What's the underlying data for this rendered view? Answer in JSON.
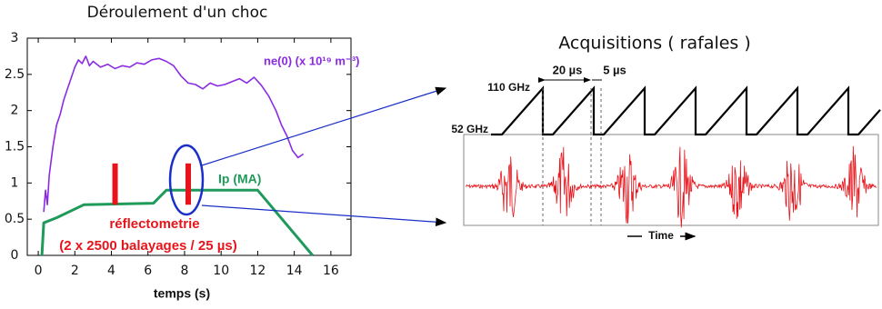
{
  "chart_data": {
    "type": "line",
    "title": "Déroulement d'un choc",
    "xlabel": "temps (s)",
    "xlim": [
      -0.6,
      17.1
    ],
    "ylim": [
      0,
      3
    ],
    "xticks": [
      0,
      2,
      4,
      6,
      8,
      10,
      12,
      14,
      16
    ],
    "yticks": [
      0,
      0.5,
      1,
      1.5,
      2,
      2.5,
      3
    ],
    "grid": false,
    "series": [
      {
        "name": "ne(0) (x 10¹⁹ m⁻³)",
        "color": "#8a2be2",
        "x": [
          0.3,
          0.4,
          0.5,
          0.6,
          0.8,
          1.0,
          1.2,
          1.4,
          1.6,
          1.8,
          2.0,
          2.2,
          2.4,
          2.6,
          2.8,
          3.0,
          3.4,
          3.8,
          4.2,
          4.6,
          5.0,
          5.4,
          5.8,
          6.2,
          6.6,
          7.0,
          7.4,
          7.8,
          8.2,
          8.6,
          9.0,
          9.4,
          9.8,
          10.2,
          10.6,
          11.0,
          11.4,
          11.8,
          12.2,
          12.6,
          13.0,
          13.3,
          13.6,
          13.9,
          14.2,
          14.5
        ],
        "values": [
          0.6,
          0.9,
          0.7,
          1.1,
          1.5,
          1.8,
          1.95,
          2.15,
          2.3,
          2.45,
          2.6,
          2.7,
          2.65,
          2.75,
          2.62,
          2.68,
          2.6,
          2.64,
          2.58,
          2.62,
          2.6,
          2.66,
          2.64,
          2.7,
          2.72,
          2.68,
          2.62,
          2.48,
          2.38,
          2.36,
          2.3,
          2.38,
          2.34,
          2.36,
          2.4,
          2.44,
          2.38,
          2.46,
          2.35,
          2.2,
          2.0,
          1.8,
          1.65,
          1.45,
          1.35,
          1.4
        ]
      },
      {
        "name": "Ip (MA)",
        "color": "#1f9a5a",
        "x": [
          0.2,
          0.3,
          1.0,
          2.5,
          6.3,
          7.0,
          12.0,
          15.0
        ],
        "values": [
          0,
          0.45,
          0.52,
          0.7,
          0.72,
          0.9,
          0.9,
          0
        ]
      }
    ],
    "markers": [
      {
        "x": 4.2,
        "y": [
          0.7,
          1.27
        ]
      },
      {
        "x": 8.2,
        "y": [
          0.7,
          1.27
        ]
      }
    ],
    "marker_color": "#e8141b",
    "annotations": [
      {
        "text": "réflectometrie"
      },
      {
        "text": "(2 x 2500 balayages / 25 µs)"
      }
    ]
  },
  "diagram": {
    "title": "Acquisitions ( rafales )",
    "freq_high": "110 GHz",
    "freq_low": "52 GHz",
    "sweep_time": "20 µs",
    "dead_time": "5 µs",
    "time_axis": "Time"
  }
}
